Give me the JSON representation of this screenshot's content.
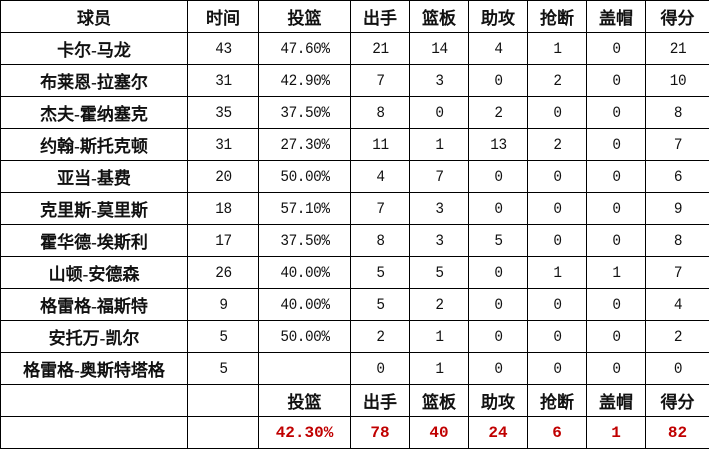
{
  "headers": [
    "球员",
    "时间",
    "投篮",
    "出手",
    "篮板",
    "助攻",
    "抢断",
    "盖帽",
    "得分"
  ],
  "rows": [
    [
      "卡尔-马龙",
      "43",
      "47.60%",
      "21",
      "14",
      "4",
      "1",
      "0",
      "21"
    ],
    [
      "布莱恩-拉塞尔",
      "31",
      "42.90%",
      "7",
      "3",
      "0",
      "2",
      "0",
      "10"
    ],
    [
      "杰夫-霍纳塞克",
      "35",
      "37.50%",
      "8",
      "0",
      "2",
      "0",
      "0",
      "8"
    ],
    [
      "约翰-斯托克顿",
      "31",
      "27.30%",
      "11",
      "1",
      "13",
      "2",
      "0",
      "7"
    ],
    [
      "亚当-基费",
      "20",
      "50.00%",
      "4",
      "7",
      "0",
      "0",
      "0",
      "6"
    ],
    [
      "克里斯-莫里斯",
      "18",
      "57.10%",
      "7",
      "3",
      "0",
      "0",
      "0",
      "9"
    ],
    [
      "霍华德-埃斯利",
      "17",
      "37.50%",
      "8",
      "3",
      "5",
      "0",
      "0",
      "8"
    ],
    [
      "山顿-安德森",
      "26",
      "40.00%",
      "5",
      "5",
      "0",
      "1",
      "1",
      "7"
    ],
    [
      "格雷格-福斯特",
      "9",
      "40.00%",
      "5",
      "2",
      "0",
      "0",
      "0",
      "4"
    ],
    [
      "安托万-凯尔",
      "5",
      "50.00%",
      "2",
      "1",
      "0",
      "0",
      "0",
      "2"
    ],
    [
      "格雷格-奥斯特塔格",
      "5",
      "",
      "0",
      "1",
      "0",
      "0",
      "0",
      "0"
    ]
  ],
  "summary_headers": [
    "",
    "",
    "投篮",
    "出手",
    "篮板",
    "助攻",
    "抢断",
    "盖帽",
    "得分"
  ],
  "totals": [
    "",
    "",
    "42.30%",
    "78",
    "40",
    "24",
    "6",
    "1",
    "82"
  ],
  "colors": {
    "totals": "#c00000",
    "grid": "#000000"
  }
}
